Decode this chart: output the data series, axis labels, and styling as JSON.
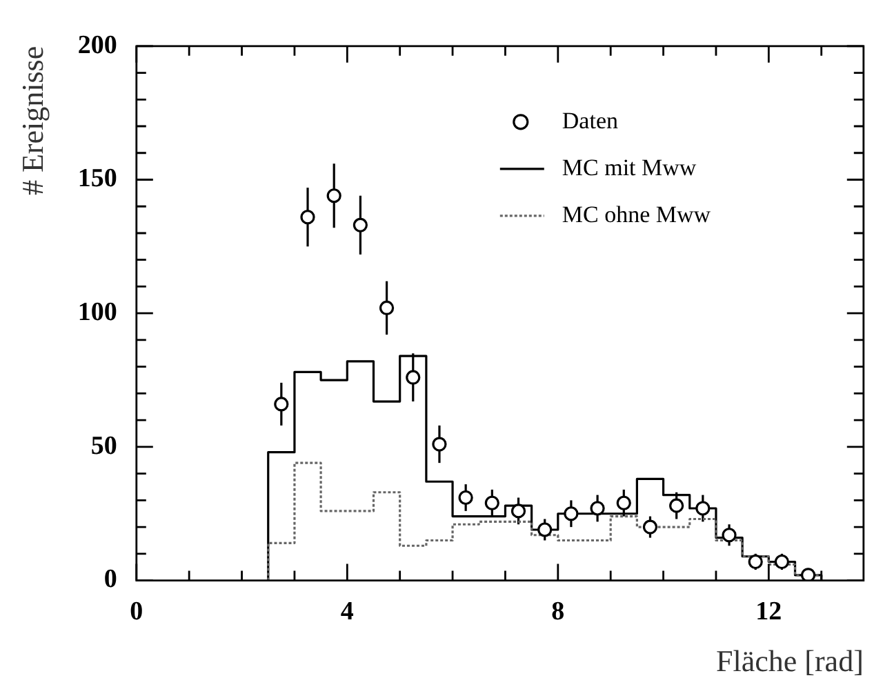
{
  "chart_data": {
    "type": "histogram",
    "xlabel": "Fläche [rad]",
    "ylabel": "# Ereignisse",
    "bins": [
      2.5,
      3,
      3.5,
      4,
      4.5,
      5,
      5.5,
      6,
      6.5,
      7,
      7.5,
      8,
      8.5,
      9,
      9.5,
      10,
      10.5,
      11,
      11.5,
      12,
      12.5,
      13
    ],
    "series": [
      {
        "name": "Daten",
        "type": "scatter",
        "color": "#000000",
        "marker": "circle",
        "x": [
          2.75,
          3.25,
          3.75,
          4.25,
          4.75,
          5.25,
          5.75,
          6.25,
          6.75,
          7.25,
          7.75,
          8.25,
          8.75,
          9.25,
          9.75,
          10.25,
          10.75,
          11.25,
          11.75,
          12.25,
          12.75
        ],
        "values": [
          66,
          136,
          144,
          133,
          102,
          76,
          51,
          31,
          29,
          26,
          19,
          25,
          27,
          29,
          20,
          28,
          27,
          17,
          7,
          7,
          2
        ],
        "errors": [
          8,
          11,
          12,
          11,
          10,
          9,
          7,
          5,
          5,
          5,
          4,
          5,
          5,
          5,
          4,
          5,
          5,
          4,
          3,
          3,
          null
        ]
      },
      {
        "name": "MC mit Mww",
        "type": "histogram",
        "color": "#000000",
        "line_style": "solid",
        "values": [
          48,
          78,
          75,
          82,
          67,
          84,
          37,
          24,
          24,
          28,
          19,
          25,
          25,
          25,
          38,
          32,
          27,
          16,
          9,
          7,
          2
        ]
      },
      {
        "name": "MC ohne Mww",
        "type": "histogram",
        "color": "#666666",
        "line_style": "dotted",
        "values": [
          14,
          44,
          26,
          26,
          33,
          13,
          15,
          21,
          22,
          22,
          17,
          15,
          15,
          24,
          20,
          20,
          23,
          15,
          9,
          6,
          2
        ]
      }
    ],
    "xlim": [
      0,
      13.8
    ],
    "ylim": [
      0,
      200
    ],
    "xticks": [
      0,
      {
        "value": 1,
        "label": null
      },
      {
        "value": 2,
        "label": null
      },
      {
        "value": 3,
        "label": null
      },
      4,
      {
        "value": 5,
        "label": null
      },
      {
        "value": 6,
        "label": null
      },
      {
        "value": 7,
        "label": null
      },
      8,
      {
        "value": 9,
        "label": null
      },
      {
        "value": 10,
        "label": null
      },
      {
        "value": 11,
        "label": null
      },
      12,
      {
        "value": 13,
        "label": null
      }
    ],
    "yticks": [
      0,
      {
        "value": 10,
        "label": null
      },
      {
        "value": 20,
        "label": null
      },
      {
        "value": 30,
        "label": null
      },
      {
        "value": 40,
        "label": null
      },
      50,
      {
        "value": 60,
        "label": null
      },
      {
        "value": 70,
        "label": null
      },
      {
        "value": 80,
        "label": null
      },
      {
        "value": 90,
        "label": null
      },
      100,
      {
        "value": 110,
        "label": null
      },
      {
        "value": 120,
        "label": null
      },
      {
        "value": 130,
        "label": null
      },
      {
        "value": 140,
        "label": null
      },
      150,
      {
        "value": 160,
        "label": null
      },
      {
        "value": 170,
        "label": null
      },
      {
        "value": 180,
        "label": null
      },
      {
        "value": 190,
        "label": null
      },
      200
    ],
    "legend": "top right",
    "grid": false
  }
}
